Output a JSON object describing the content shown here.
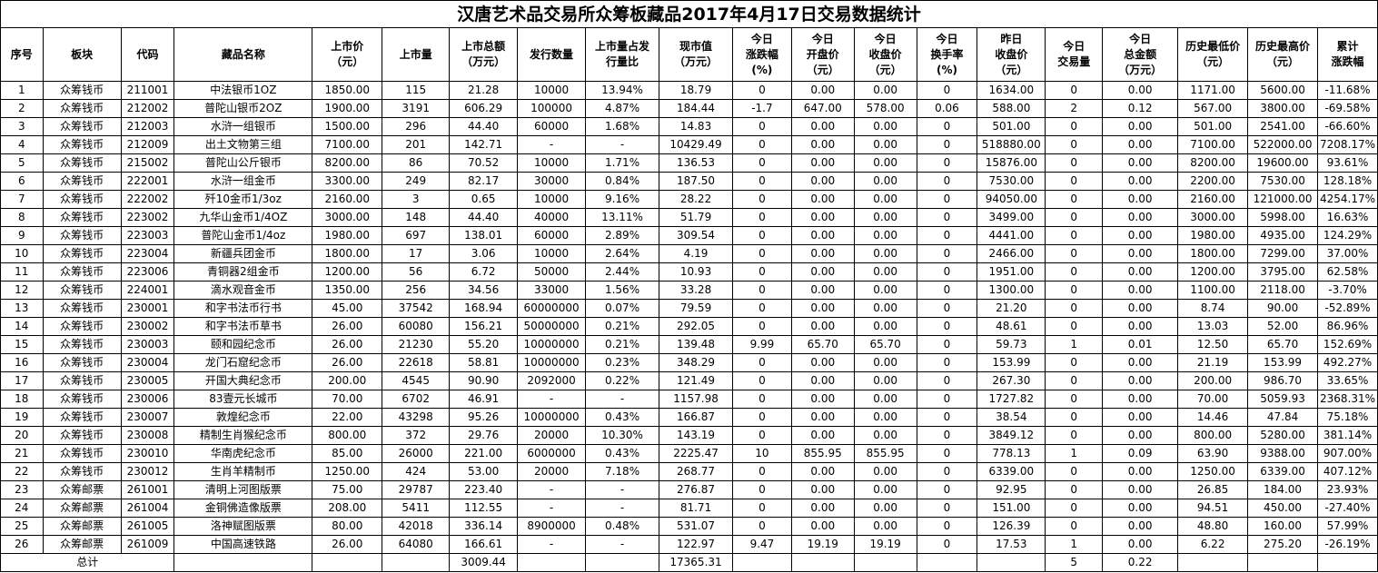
{
  "title": "汉唐艺术品交易所众筹板藏品2017年4月17日交易数据统计",
  "headers": [
    "序号",
    "板块",
    "代码",
    "藏品名称",
    "上市价\n（元）",
    "上市量",
    "上市总额\n（万元）",
    "发行数量",
    "上市量占发\n行量比",
    "现市值\n（万元）",
    "今日\n涨跌幅\n(%)",
    "今日\n开盘价\n（元）",
    "今日\n收盘价\n（元）",
    "今日\n换手率\n(%)",
    "昨日\n收盘价\n（元）",
    "今日\n交易量",
    "今日\n总金额\n（万元）",
    "历史最低价\n（元）",
    "历史最高价\n（元）",
    "累计\n涨跌幅"
  ],
  "rows": [
    [
      "1",
      "众筹钱币",
      "211001",
      "中法银币1OZ",
      "1850.00",
      "115",
      "21.28",
      "10000",
      "13.94%",
      "18.79",
      "0",
      "0.00",
      "0.00",
      "0",
      "1634.00",
      "0",
      "0.00",
      "1171.00",
      "5600.00",
      "-11.68%"
    ],
    [
      "2",
      "众筹钱币",
      "212002",
      "普陀山银币2OZ",
      "1900.00",
      "3191",
      "606.29",
      "100000",
      "4.87%",
      "184.44",
      "-1.7",
      "647.00",
      "578.00",
      "0.06",
      "588.00",
      "2",
      "0.12",
      "567.00",
      "3800.00",
      "-69.58%"
    ],
    [
      "3",
      "众筹钱币",
      "212003",
      "水浒一组银币",
      "1500.00",
      "296",
      "44.40",
      "60000",
      "1.68%",
      "14.83",
      "0",
      "0.00",
      "0.00",
      "0",
      "501.00",
      "0",
      "0.00",
      "501.00",
      "2541.00",
      "-66.60%"
    ],
    [
      "4",
      "众筹钱币",
      "212009",
      "出土文物第三组",
      "7100.00",
      "201",
      "142.71",
      "-",
      "-",
      "10429.49",
      "0",
      "0.00",
      "0.00",
      "0",
      "518880.00",
      "0",
      "0.00",
      "7100.00",
      "522000.00",
      "7208.17%"
    ],
    [
      "5",
      "众筹钱币",
      "215002",
      "普陀山公斤银币",
      "8200.00",
      "86",
      "70.52",
      "10000",
      "1.71%",
      "136.53",
      "0",
      "0.00",
      "0.00",
      "0",
      "15876.00",
      "0",
      "0.00",
      "8200.00",
      "19600.00",
      "93.61%"
    ],
    [
      "6",
      "众筹钱币",
      "222001",
      "水浒一组金币",
      "3300.00",
      "249",
      "82.17",
      "30000",
      "0.84%",
      "187.50",
      "0",
      "0.00",
      "0.00",
      "0",
      "7530.00",
      "0",
      "0.00",
      "2200.00",
      "7530.00",
      "128.18%"
    ],
    [
      "7",
      "众筹钱币",
      "222002",
      "歼10金币1/3oz",
      "2160.00",
      "3",
      "0.65",
      "10000",
      "9.16%",
      "28.22",
      "0",
      "0.00",
      "0.00",
      "0",
      "94050.00",
      "0",
      "0.00",
      "2160.00",
      "121000.00",
      "4254.17%"
    ],
    [
      "8",
      "众筹钱币",
      "223002",
      "九华山金币1/4OZ",
      "3000.00",
      "148",
      "44.40",
      "40000",
      "13.11%",
      "51.79",
      "0",
      "0.00",
      "0.00",
      "0",
      "3499.00",
      "0",
      "0.00",
      "3000.00",
      "5998.00",
      "16.63%"
    ],
    [
      "9",
      "众筹钱币",
      "223003",
      "普陀山金币1/4oz",
      "1980.00",
      "697",
      "138.01",
      "60000",
      "2.89%",
      "309.54",
      "0",
      "0.00",
      "0.00",
      "0",
      "4441.00",
      "0",
      "0.00",
      "1980.00",
      "4935.00",
      "124.29%"
    ],
    [
      "10",
      "众筹钱币",
      "223004",
      "新疆兵团金币",
      "1800.00",
      "17",
      "3.06",
      "10000",
      "2.64%",
      "4.19",
      "0",
      "0.00",
      "0.00",
      "0",
      "2466.00",
      "0",
      "0.00",
      "1800.00",
      "7299.00",
      "37.00%"
    ],
    [
      "11",
      "众筹钱币",
      "223006",
      "青铜器2组金币",
      "1200.00",
      "56",
      "6.72",
      "50000",
      "2.44%",
      "10.93",
      "0",
      "0.00",
      "0.00",
      "0",
      "1951.00",
      "0",
      "0.00",
      "1200.00",
      "3795.00",
      "62.58%"
    ],
    [
      "12",
      "众筹钱币",
      "224001",
      "滴水观音金币",
      "1350.00",
      "256",
      "34.56",
      "33000",
      "1.56%",
      "33.28",
      "0",
      "0.00",
      "0.00",
      "0",
      "1300.00",
      "0",
      "0.00",
      "1100.00",
      "2118.00",
      "-3.70%"
    ],
    [
      "13",
      "众筹钱币",
      "230001",
      "和字书法币行书",
      "45.00",
      "37542",
      "168.94",
      "60000000",
      "0.07%",
      "79.59",
      "0",
      "0.00",
      "0.00",
      "0",
      "21.20",
      "0",
      "0.00",
      "8.74",
      "90.00",
      "-52.89%"
    ],
    [
      "14",
      "众筹钱币",
      "230002",
      "和字书法币草书",
      "26.00",
      "60080",
      "156.21",
      "50000000",
      "0.21%",
      "292.05",
      "0",
      "0.00",
      "0.00",
      "0",
      "48.61",
      "0",
      "0.00",
      "13.03",
      "52.00",
      "86.96%"
    ],
    [
      "15",
      "众筹钱币",
      "230003",
      "颐和园纪念币",
      "26.00",
      "21230",
      "55.20",
      "10000000",
      "0.21%",
      "139.48",
      "9.99",
      "65.70",
      "65.70",
      "0",
      "59.73",
      "1",
      "0.01",
      "12.50",
      "65.70",
      "152.69%"
    ],
    [
      "16",
      "众筹钱币",
      "230004",
      "龙门石窟纪念币",
      "26.00",
      "22618",
      "58.81",
      "10000000",
      "0.23%",
      "348.29",
      "0",
      "0.00",
      "0.00",
      "0",
      "153.99",
      "0",
      "0.00",
      "21.19",
      "153.99",
      "492.27%"
    ],
    [
      "17",
      "众筹钱币",
      "230005",
      "开国大典纪念币",
      "200.00",
      "4545",
      "90.90",
      "2092000",
      "0.22%",
      "121.49",
      "0",
      "0.00",
      "0.00",
      "0",
      "267.30",
      "0",
      "0.00",
      "200.00",
      "986.70",
      "33.65%"
    ],
    [
      "18",
      "众筹钱币",
      "230006",
      "83壹元长城币",
      "70.00",
      "6702",
      "46.91",
      "-",
      "-",
      "1157.98",
      "0",
      "0.00",
      "0.00",
      "0",
      "1727.82",
      "0",
      "0.00",
      "70.00",
      "5059.93",
      "2368.31%"
    ],
    [
      "19",
      "众筹钱币",
      "230007",
      "敦煌纪念币",
      "22.00",
      "43298",
      "95.26",
      "10000000",
      "0.43%",
      "166.87",
      "0",
      "0.00",
      "0.00",
      "0",
      "38.54",
      "0",
      "0.00",
      "14.46",
      "47.84",
      "75.18%"
    ],
    [
      "20",
      "众筹钱币",
      "230008",
      "精制生肖猴纪念币",
      "800.00",
      "372",
      "29.76",
      "20000",
      "10.30%",
      "143.19",
      "0",
      "0.00",
      "0.00",
      "0",
      "3849.12",
      "0",
      "0.00",
      "800.00",
      "5280.00",
      "381.14%"
    ],
    [
      "21",
      "众筹钱币",
      "230010",
      "华南虎纪念币",
      "85.00",
      "26000",
      "221.00",
      "6000000",
      "0.43%",
      "2225.47",
      "10",
      "855.95",
      "855.95",
      "0",
      "778.13",
      "1",
      "0.09",
      "63.90",
      "9388.00",
      "907.00%"
    ],
    [
      "22",
      "众筹钱币",
      "230012",
      "生肖羊精制币",
      "1250.00",
      "424",
      "53.00",
      "20000",
      "7.18%",
      "268.77",
      "0",
      "0.00",
      "0.00",
      "0",
      "6339.00",
      "0",
      "0.00",
      "1250.00",
      "6339.00",
      "407.12%"
    ],
    [
      "23",
      "众筹邮票",
      "261001",
      "清明上河图版票",
      "75.00",
      "29787",
      "223.40",
      "-",
      "-",
      "276.87",
      "0",
      "0.00",
      "0.00",
      "0",
      "92.95",
      "0",
      "0.00",
      "26.85",
      "184.00",
      "23.93%"
    ],
    [
      "24",
      "众筹邮票",
      "261004",
      "金铜佛造像版票",
      "208.00",
      "5411",
      "112.55",
      "-",
      "-",
      "81.71",
      "0",
      "0.00",
      "0.00",
      "0",
      "151.00",
      "0",
      "0.00",
      "94.51",
      "450.00",
      "-27.40%"
    ],
    [
      "25",
      "众筹邮票",
      "261005",
      "洛神赋图版票",
      "80.00",
      "42018",
      "336.14",
      "8900000",
      "0.48%",
      "531.07",
      "0",
      "0.00",
      "0.00",
      "0",
      "126.39",
      "0",
      "0.00",
      "48.80",
      "160.00",
      "57.99%"
    ],
    [
      "26",
      "众筹邮票",
      "261009",
      "中国高速铁路",
      "26.00",
      "64080",
      "166.61",
      "-",
      "-",
      "122.97",
      "9.47",
      "19.19",
      "19.19",
      "0",
      "17.53",
      "1",
      "0.00",
      "6.22",
      "275.20",
      "-26.19%"
    ]
  ],
  "total": {
    "label": "总计",
    "cells": [
      "",
      "",
      "",
      "3009.44",
      "",
      "",
      "17365.31",
      "",
      "",
      "",
      "",
      "",
      "5",
      "0.22",
      "",
      "",
      ""
    ]
  }
}
